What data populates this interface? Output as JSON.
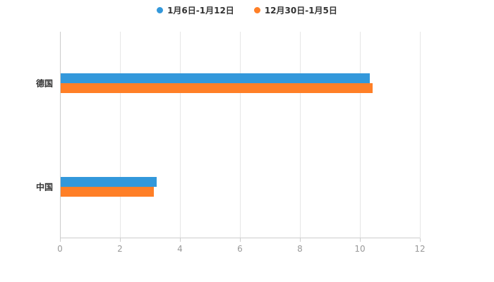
{
  "chart_data": {
    "type": "bar",
    "orientation": "horizontal",
    "title": "",
    "xlabel": "",
    "ylabel": "",
    "categories": [
      "德国",
      "中国"
    ],
    "series": [
      {
        "name": "1月6日-1月12日",
        "color": "#3398db",
        "values": [
          10.3,
          3.2
        ]
      },
      {
        "name": "12月30日-1月5日",
        "color": "#ff7f27",
        "values": [
          10.4,
          3.1
        ]
      }
    ],
    "xlim": [
      0,
      12
    ],
    "x_ticks": [
      "0",
      "2",
      "4",
      "6",
      "8",
      "10",
      "12"
    ],
    "grid": true,
    "legend_position": "top"
  },
  "colors": {
    "grid": "#e6e6e6",
    "axis": "#cccccc",
    "tick_text": "#999999",
    "category_text": "#333333",
    "legend_text": "#333333",
    "background": "#ffffff"
  }
}
